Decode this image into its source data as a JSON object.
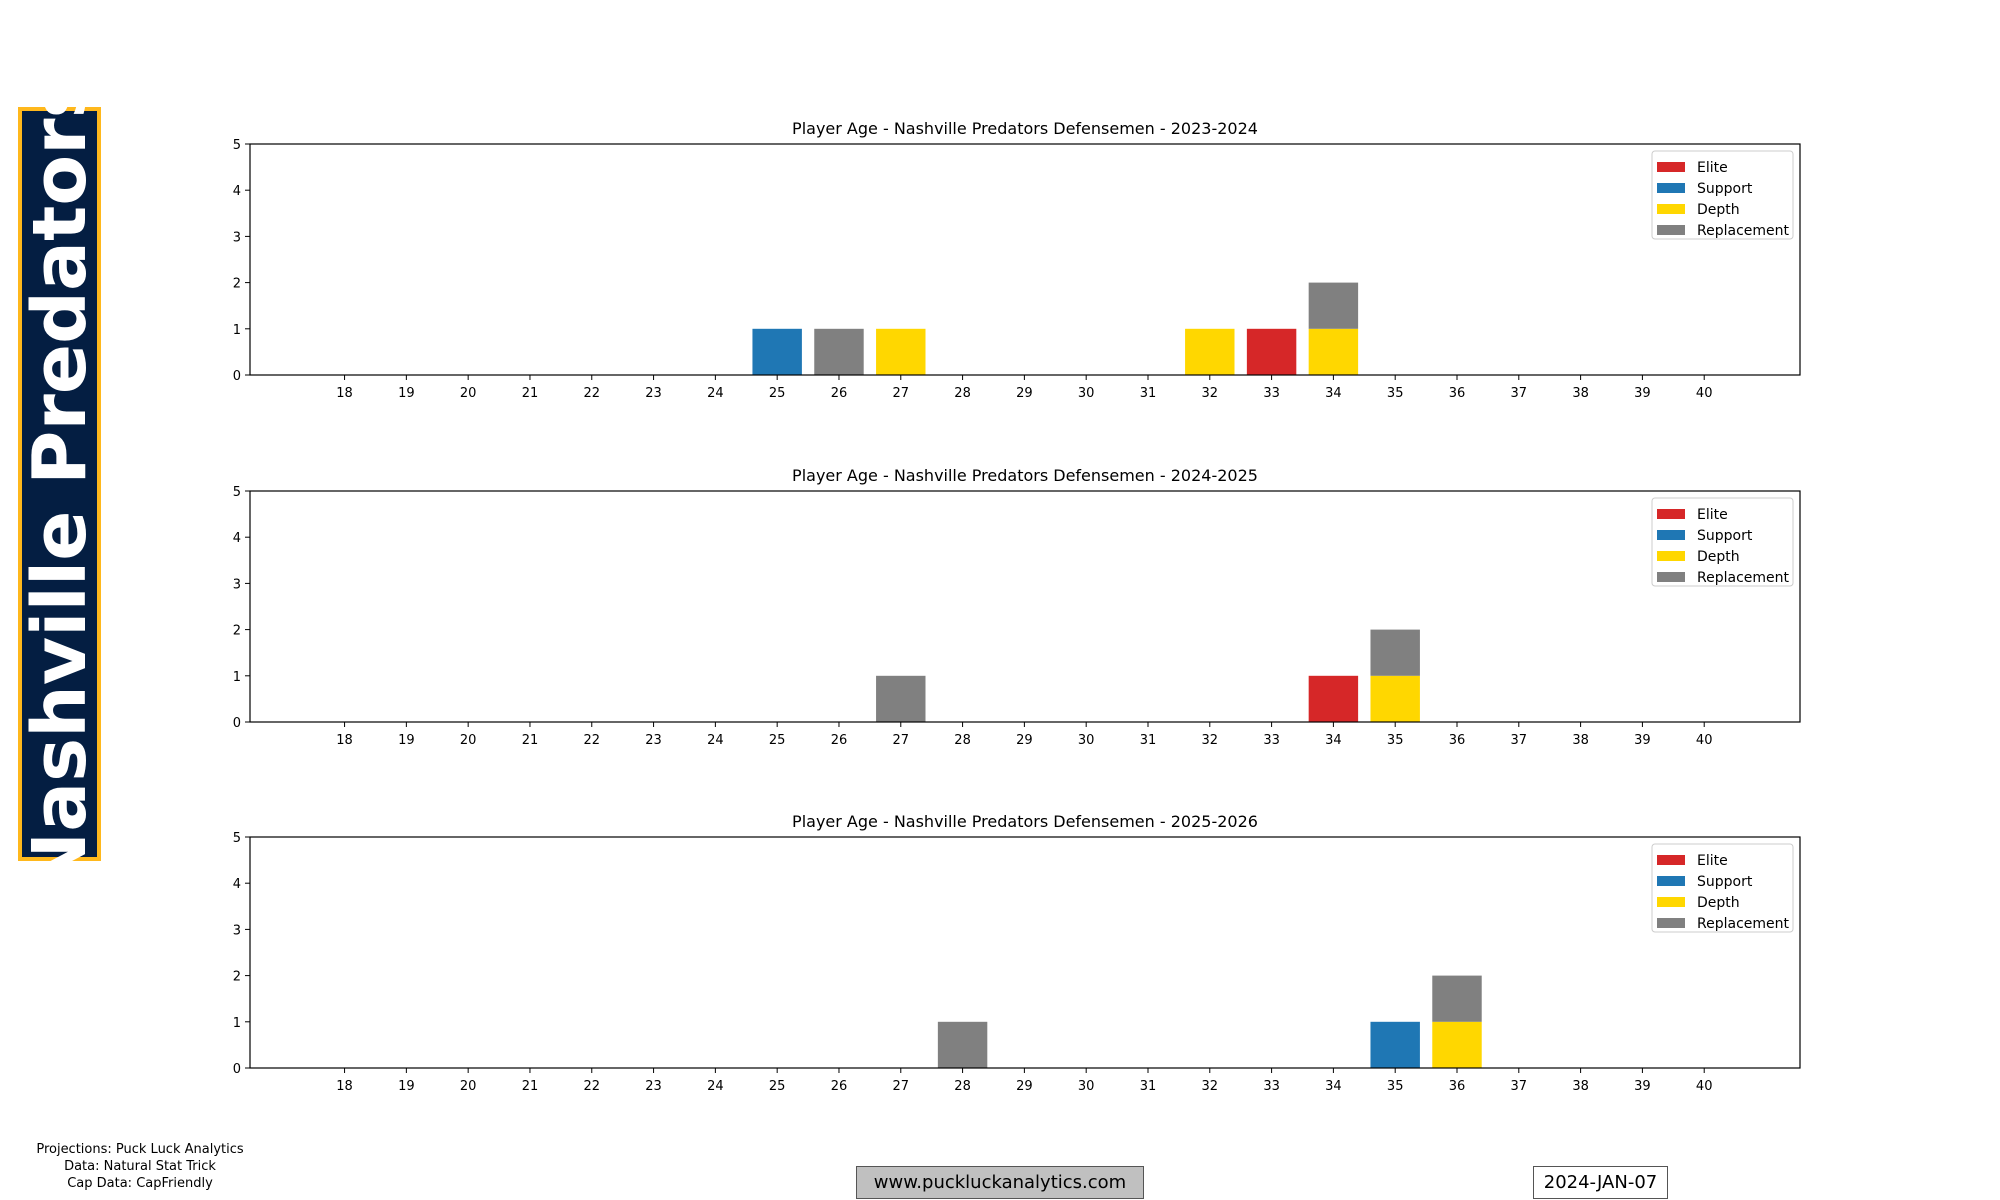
{
  "team": {
    "name": "Nashville Predators",
    "banner_bg": "#041e42",
    "banner_border": "#ffb81c"
  },
  "colors": {
    "Elite": "#d62728",
    "Support": "#1f77b4",
    "Depth": "#ffd700",
    "Replacement": "#808080"
  },
  "chart_data": [
    {
      "type": "bar",
      "stacked": true,
      "title": "Player Age - Nashville Predators Defensemen - 2023-2024",
      "xlabel": "",
      "ylabel": "",
      "categories": [
        18,
        19,
        20,
        21,
        22,
        23,
        24,
        25,
        26,
        27,
        28,
        29,
        30,
        31,
        32,
        33,
        34,
        35,
        36,
        37,
        38,
        39,
        40
      ],
      "xlim": [
        16.47,
        41.55
      ],
      "ylim": [
        0,
        5
      ],
      "yticks": [
        0,
        1,
        2,
        3,
        4,
        5
      ],
      "legend": [
        "Elite",
        "Support",
        "Depth",
        "Replacement"
      ],
      "legend_position": "top-right",
      "series": [
        {
          "name": "Elite",
          "values": {
            "33": 1
          }
        },
        {
          "name": "Support",
          "values": {
            "25": 1
          }
        },
        {
          "name": "Depth",
          "values": {
            "27": 1,
            "32": 1,
            "34": 1
          }
        },
        {
          "name": "Replacement",
          "values": {
            "26": 1,
            "34": 1
          }
        }
      ]
    },
    {
      "type": "bar",
      "stacked": true,
      "title": "Player Age - Nashville Predators Defensemen - 2024-2025",
      "xlabel": "",
      "ylabel": "",
      "categories": [
        18,
        19,
        20,
        21,
        22,
        23,
        24,
        25,
        26,
        27,
        28,
        29,
        30,
        31,
        32,
        33,
        34,
        35,
        36,
        37,
        38,
        39,
        40
      ],
      "xlim": [
        16.47,
        41.55
      ],
      "ylim": [
        0,
        5
      ],
      "yticks": [
        0,
        1,
        2,
        3,
        4,
        5
      ],
      "legend": [
        "Elite",
        "Support",
        "Depth",
        "Replacement"
      ],
      "legend_position": "top-right",
      "series": [
        {
          "name": "Elite",
          "values": {
            "34": 1
          }
        },
        {
          "name": "Support",
          "values": {}
        },
        {
          "name": "Depth",
          "values": {
            "35": 1
          }
        },
        {
          "name": "Replacement",
          "values": {
            "27": 1,
            "35": 1
          }
        }
      ]
    },
    {
      "type": "bar",
      "stacked": true,
      "title": "Player Age - Nashville Predators Defensemen - 2025-2026",
      "xlabel": "",
      "ylabel": "",
      "categories": [
        18,
        19,
        20,
        21,
        22,
        23,
        24,
        25,
        26,
        27,
        28,
        29,
        30,
        31,
        32,
        33,
        34,
        35,
        36,
        37,
        38,
        39,
        40
      ],
      "xlim": [
        16.47,
        41.55
      ],
      "ylim": [
        0,
        5
      ],
      "yticks": [
        0,
        1,
        2,
        3,
        4,
        5
      ],
      "legend": [
        "Elite",
        "Support",
        "Depth",
        "Replacement"
      ],
      "legend_position": "top-right",
      "series": [
        {
          "name": "Elite",
          "values": {}
        },
        {
          "name": "Support",
          "values": {
            "35": 1
          }
        },
        {
          "name": "Depth",
          "values": {
            "36": 1
          }
        },
        {
          "name": "Replacement",
          "values": {
            "28": 1,
            "36": 1
          }
        }
      ]
    }
  ],
  "footer": {
    "credits": [
      "Projections: Puck Luck Analytics",
      "Data: Natural Stat Trick",
      "Cap Data: CapFriendly"
    ],
    "website": "www.puckluckanalytics.com",
    "date": "2024-JAN-07"
  }
}
